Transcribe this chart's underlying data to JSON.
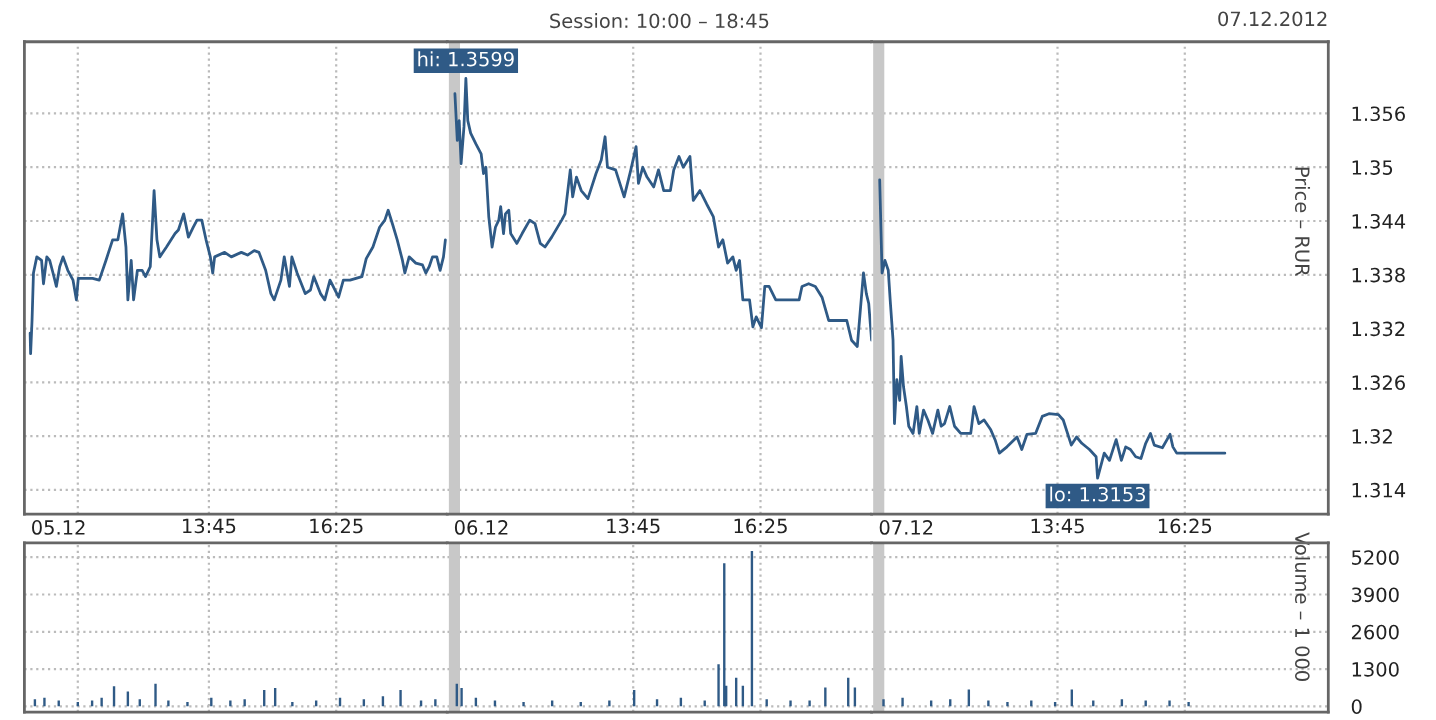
{
  "chart_data": [
    {
      "type": "line",
      "xlabel": "05.12",
      "series": [
        {
          "color": "#2f5a86",
          "x": [
            10.0,
            10.01,
            10.04,
            10.07,
            10.14,
            10.24,
            10.28,
            10.35,
            10.41,
            10.48,
            10.55,
            10.62,
            10.69,
            10.79,
            10.9,
            10.97,
            11.01,
            11.31,
            11.45,
            11.59,
            11.73,
            11.84,
            11.94,
            12.01,
            12.05,
            12.12,
            12.17,
            12.25,
            12.35,
            12.42,
            12.52,
            12.6,
            12.66,
            12.72,
            12.86,
            13.04,
            13.11,
            13.22,
            13.32,
            13.42,
            13.5,
            13.6,
            13.69,
            13.78,
            13.83,
            13.87,
            14.08,
            14.22,
            14.43,
            14.56,
            14.7,
            14.8,
            14.94,
            15.05,
            15.12,
            15.26,
            15.33,
            15.44,
            15.49,
            15.6,
            15.77,
            15.88,
            15.95,
            16.09,
            16.18,
            16.29,
            16.47,
            16.57,
            16.71,
            16.96,
            17.05,
            17.19,
            17.33,
            17.44,
            17.51,
            17.61,
            17.7,
            17.81,
            17.86,
            17.95,
            18.09,
            18.23,
            18.3,
            18.37,
            18.44,
            18.53,
            18.6,
            18.67,
            18.71
          ],
          "values": [
            1.3315,
            1.3292,
            1.3329,
            1.3382,
            1.34,
            1.3396,
            1.337,
            1.34,
            1.3396,
            1.3382,
            1.3367,
            1.3389,
            1.34,
            1.3385,
            1.3374,
            1.3352,
            1.3376,
            1.3376,
            1.3374,
            1.3396,
            1.3419,
            1.3419,
            1.3448,
            1.3411,
            1.3352,
            1.3396,
            1.3352,
            1.3385,
            1.3385,
            1.3378,
            1.3389,
            1.3474,
            1.3419,
            1.34,
            1.3411,
            1.3426,
            1.343,
            1.3448,
            1.3422,
            1.3433,
            1.3441,
            1.3441,
            1.3419,
            1.34,
            1.3382,
            1.34,
            1.3405,
            1.34,
            1.3405,
            1.3402,
            1.3407,
            1.3405,
            1.3385,
            1.3359,
            1.3352,
            1.3374,
            1.34,
            1.3367,
            1.34,
            1.3382,
            1.3359,
            1.3363,
            1.3378,
            1.3359,
            1.3352,
            1.3374,
            1.3355,
            1.3374,
            1.3374,
            1.3378,
            1.3398,
            1.3411,
            1.3433,
            1.3441,
            1.3452,
            1.3435,
            1.3419,
            1.3396,
            1.3382,
            1.34,
            1.3393,
            1.3391,
            1.3382,
            1.3389,
            1.34,
            1.34,
            1.3385,
            1.34,
            1.3419
          ]
        }
      ],
      "xlim": [
        9.88,
        18.75
      ],
      "xticks": [
        {
          "value": 11,
          "label": null
        },
        {
          "value": 13.75,
          "label": "13:45"
        },
        {
          "value": 16.42,
          "label": "16:25"
        }
      ],
      "ylim": [
        1.3113,
        1.364
      ],
      "yticks": [
        1.314,
        1.32,
        1.326,
        1.332,
        1.338,
        1.344,
        1.35,
        1.356
      ],
      "grid": true,
      "line_style": "solid",
      "tick_labels": "x"
    },
    {
      "type": "line",
      "xlabel": "06.12",
      "title": "Session: 10:00 – 18:45",
      "annotations": [
        {
          "text": "hi: 1.3599",
          "x": 10.24,
          "y": 1.3599
        }
      ],
      "series": [
        {
          "color": "#2f5a86",
          "x": [
            10.01,
            10.06,
            10.1,
            10.14,
            10.2,
            10.24,
            10.28,
            10.34,
            10.45,
            10.56,
            10.61,
            10.66,
            10.72,
            10.79,
            10.86,
            10.93,
            10.97,
            11.03,
            11.07,
            11.14,
            11.18,
            11.31,
            11.42,
            11.58,
            11.69,
            11.8,
            11.9,
            12.04,
            12.25,
            12.32,
            12.43,
            12.48,
            12.56,
            12.66,
            12.8,
            12.97,
            13.08,
            13.16,
            13.21,
            13.38,
            13.56,
            13.7,
            13.81,
            13.86,
            13.95,
            14.04,
            14.18,
            14.28,
            14.39,
            14.53,
            14.6,
            14.71,
            14.8,
            14.94,
            15.01,
            15.15,
            15.29,
            15.43,
            15.54,
            15.63,
            15.73,
            15.84,
            15.91,
            15.98,
            16.05,
            16.19,
            16.26,
            16.33,
            16.44,
            16.51,
            16.6,
            16.74,
            17.23,
            17.29,
            17.43,
            17.57,
            17.71,
            17.85,
            18.06,
            18.23,
            18.33,
            18.45,
            18.58,
            18.64,
            18.69,
            18.75
          ],
          "values": [
            1.3582,
            1.353,
            1.3552,
            1.3504,
            1.3545,
            1.3599,
            1.3552,
            1.3538,
            1.3526,
            1.3515,
            1.3493,
            1.35,
            1.3445,
            1.3411,
            1.3433,
            1.3441,
            1.3456,
            1.3426,
            1.3448,
            1.3452,
            1.3426,
            1.3415,
            1.3426,
            1.3441,
            1.3437,
            1.3415,
            1.3411,
            1.3422,
            1.3441,
            1.3448,
            1.3497,
            1.3467,
            1.3489,
            1.3474,
            1.3465,
            1.3493,
            1.3508,
            1.3534,
            1.35,
            1.3497,
            1.3467,
            1.3497,
            1.3523,
            1.3482,
            1.35,
            1.3489,
            1.3478,
            1.3497,
            1.3474,
            1.3474,
            1.3497,
            1.3512,
            1.35,
            1.3512,
            1.3463,
            1.3474,
            1.3459,
            1.3445,
            1.3411,
            1.3419,
            1.3393,
            1.34,
            1.3385,
            1.3396,
            1.3352,
            1.3352,
            1.3322,
            1.3333,
            1.3321,
            1.3367,
            1.3367,
            1.3352,
            1.3352,
            1.3367,
            1.337,
            1.3367,
            1.3355,
            1.3329,
            1.3329,
            1.3329,
            1.3307,
            1.33,
            1.3382,
            1.3359,
            1.3348,
            1.3307
          ]
        }
      ],
      "xlim": [
        9.85,
        18.75
      ],
      "xticks": [
        {
          "value": 13.75,
          "label": "13:45"
        },
        {
          "value": 16.42,
          "label": "16:25"
        }
      ],
      "ylim": [
        1.3113,
        1.364
      ],
      "yticks": [
        1.314,
        1.32,
        1.326,
        1.332,
        1.338,
        1.344,
        1.35,
        1.356
      ],
      "ref_lines": [
        {
          "axis": "x",
          "value": 10,
          "color": "#c8c8c8"
        }
      ],
      "grid": true,
      "line_style": "solid",
      "tick_labels": "x"
    },
    {
      "type": "line",
      "xlabel": "07.12",
      "ylabel": "Price – RUR",
      "annotations": [
        "07.12.2012",
        {
          "text": "lo: 1.3153",
          "x": 14.59,
          "y": 1.3153
        }
      ],
      "series": [
        {
          "color": "#2f5a86",
          "x": [
            10.02,
            10.07,
            10.13,
            10.2,
            10.24,
            10.3,
            10.33,
            10.38,
            10.44,
            10.47,
            10.52,
            10.58,
            10.63,
            10.72,
            10.8,
            10.85,
            10.94,
            11.03,
            11.13,
            11.24,
            11.31,
            11.38,
            11.49,
            11.59,
            11.72,
            11.93,
            12.0,
            12.1,
            12.21,
            12.35,
            12.44,
            12.53,
            12.69,
            12.9,
            13.0,
            13.11,
            13.29,
            13.43,
            13.57,
            13.77,
            13.87,
            14.04,
            14.15,
            14.26,
            14.42,
            14.56,
            14.59,
            14.73,
            14.84,
            14.98,
            15.09,
            15.18,
            15.28,
            15.39,
            15.5,
            15.6,
            15.7,
            15.78,
            15.95,
            16.11,
            16.17,
            16.25,
            17.26
          ],
          "values": [
            1.3486,
            1.3382,
            1.3396,
            1.3385,
            1.3352,
            1.3307,
            1.3214,
            1.3263,
            1.324,
            1.3289,
            1.3255,
            1.3233,
            1.3211,
            1.3203,
            1.3233,
            1.3203,
            1.3229,
            1.3218,
            1.3203,
            1.3229,
            1.3211,
            1.3214,
            1.3233,
            1.3211,
            1.3203,
            1.3203,
            1.3233,
            1.3214,
            1.3218,
            1.3207,
            1.3196,
            1.3181,
            1.3188,
            1.3199,
            1.3185,
            1.3202,
            1.3203,
            1.3222,
            1.3225,
            1.3224,
            1.3218,
            1.319,
            1.3199,
            1.3192,
            1.3185,
            1.3177,
            1.3153,
            1.3181,
            1.3173,
            1.3196,
            1.3173,
            1.3188,
            1.3185,
            1.3177,
            1.3175,
            1.3192,
            1.3203,
            1.319,
            1.3187,
            1.3202,
            1.3188,
            1.3181,
            1.3181
          ]
        }
      ],
      "xlim": [
        9.85,
        19.43
      ],
      "xticks": [
        {
          "value": 13.75,
          "label": "13:45"
        },
        {
          "value": 16.42,
          "label": "16:25"
        }
      ],
      "ylim": [
        1.3113,
        1.364
      ],
      "yticks": [
        1.314,
        1.32,
        1.326,
        1.332,
        1.338,
        1.344,
        1.35,
        1.356
      ],
      "ref_lines": [
        {
          "axis": "x",
          "value": 10,
          "color": "#c8c8c8"
        }
      ],
      "grid": true,
      "line_style": "solid"
    },
    {
      "type": "bar",
      "series": [
        {
          "color": "#2f5a86",
          "x": [
            10.1,
            10.3,
            10.6,
            11.0,
            11.3,
            11.5,
            11.76,
            12.05,
            12.3,
            12.63,
            12.9,
            13.3,
            13.8,
            14.2,
            14.5,
            14.91,
            15.14,
            15.5,
            16.0,
            16.5,
            17.0,
            17.4,
            17.77,
            18.2,
            18.5
          ],
          "values": [
            250,
            300,
            200,
            150,
            200,
            300,
            700,
            520,
            250,
            790,
            200,
            150,
            300,
            200,
            250,
            570,
            640,
            150,
            200,
            300,
            250,
            350,
            570,
            200,
            250
          ]
        }
      ],
      "xlim": [
        9.88,
        18.75
      ],
      "xticks": [
        {
          "value": 11,
          "label": null
        },
        {
          "value": 13.75,
          "label": null
        },
        {
          "value": 16.42,
          "label": null
        }
      ],
      "ylim": [
        -200,
        5700
      ],
      "yticks": [
        0,
        1300,
        2600,
        3900,
        5200
      ],
      "grid": true,
      "tick_labels": false
    },
    {
      "type": "bar",
      "series": [
        {
          "color": "#2f5a86",
          "x": [
            10.05,
            10.15,
            10.45,
            10.85,
            11.45,
            12.05,
            12.65,
            13.25,
            13.77,
            14.25,
            14.75,
            15.25,
            15.54,
            15.66,
            15.7,
            15.91,
            16.05,
            16.24,
            16.55,
            17.05,
            17.45,
            17.78,
            18.26,
            18.4
          ],
          "values": [
            790,
            640,
            300,
            200,
            150,
            200,
            150,
            200,
            570,
            250,
            300,
            200,
            1470,
            4990,
            720,
            1000,
            720,
            5420,
            250,
            200,
            200,
            660,
            1000,
            660
          ]
        }
      ],
      "xlim": [
        9.85,
        18.75
      ],
      "xticks": [
        {
          "value": 13.75,
          "label": null
        },
        {
          "value": 16.42,
          "label": null
        }
      ],
      "ylim": [
        -200,
        5700
      ],
      "yticks": [
        0,
        1300,
        2600,
        3900,
        5200
      ],
      "ref_lines": [
        {
          "axis": "x",
          "value": 10,
          "color": "#c8c8c8"
        }
      ],
      "grid": true,
      "tick_labels": false
    },
    {
      "type": "bar",
      "ylabel": "Volume – 1 000",
      "series": [
        {
          "color": "#2f5a86",
          "x": [
            10.1,
            10.5,
            11.1,
            11.5,
            11.89,
            12.3,
            12.7,
            13.2,
            13.7,
            14.05,
            14.5,
            15.1,
            15.6,
            16.1,
            16.5
          ],
          "values": [
            250,
            300,
            200,
            250,
            590,
            200,
            150,
            200,
            150,
            590,
            200,
            250,
            200,
            200,
            150
          ]
        }
      ],
      "xlim": [
        9.85,
        19.43
      ],
      "xticks": [
        {
          "value": 13.75,
          "label": null
        },
        {
          "value": 16.42,
          "label": null
        }
      ],
      "ylim": [
        -200,
        5700
      ],
      "yticks": [
        0,
        1300,
        2600,
        3900,
        5200
      ],
      "ref_lines": [
        {
          "axis": "x",
          "value": 10,
          "color": "#c8c8c8"
        }
      ],
      "grid": true,
      "tick_labels": "y"
    }
  ]
}
